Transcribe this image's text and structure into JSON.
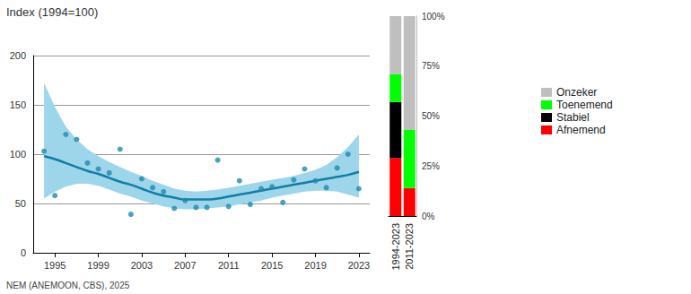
{
  "chart_data": [
    {
      "type": "line",
      "title": "Index (1994=100)",
      "source": "NEM (ANEMOON, CBS), 2025",
      "x": [
        1994,
        1995,
        1996,
        1997,
        1998,
        1999,
        2000,
        2001,
        2002,
        2003,
        2004,
        2005,
        2006,
        2007,
        2008,
        2009,
        2010,
        2011,
        2012,
        2013,
        2014,
        2015,
        2016,
        2017,
        2018,
        2019,
        2020,
        2021,
        2022,
        2023
      ],
      "series": [
        {
          "type": "scatter",
          "marker": "circle",
          "color": "#1f8aac",
          "values": [
            103,
            58,
            120,
            115,
            91,
            85,
            81,
            105,
            39,
            75,
            66,
            62,
            45,
            53,
            46,
            46,
            94,
            47,
            73,
            49,
            65,
            67,
            51,
            74,
            85,
            73,
            66,
            86,
            100,
            65
          ]
        },
        {
          "type": "line",
          "color": "#127ea3",
          "values": [
            98,
            95,
            91,
            87,
            83,
            80,
            76,
            72,
            69,
            65,
            61,
            58,
            56,
            54,
            54,
            54,
            55,
            57,
            59,
            61,
            63,
            65,
            67,
            69,
            71,
            73,
            75,
            77,
            79,
            82
          ]
        }
      ],
      "band": {
        "color": "#9dd5eb",
        "lower": [
          55,
          62,
          67,
          70,
          70,
          68,
          64,
          60,
          57,
          53,
          50,
          47,
          45,
          44,
          44,
          45,
          46,
          47,
          49,
          51,
          53,
          56,
          58,
          60,
          62,
          63,
          63,
          62,
          59,
          56
        ],
        "upper": [
          172,
          148,
          128,
          115,
          105,
          98,
          92,
          87,
          82,
          78,
          73,
          69,
          65,
          63,
          62,
          63,
          64,
          66,
          68,
          70,
          72,
          74,
          76,
          78,
          81,
          84,
          89,
          97,
          107,
          120
        ]
      },
      "xlim": [
        1993,
        2024
      ],
      "xticks": [
        1995,
        1999,
        2003,
        2007,
        2011,
        2015,
        2019,
        2023
      ],
      "ylim": [
        0,
        200
      ],
      "yticks": [
        0,
        50,
        100,
        150,
        200
      ],
      "grid": true
    },
    {
      "type": "bar",
      "stacked": true,
      "categories": [
        "1994-2023",
        "2011-2023"
      ],
      "series": [
        {
          "name": "Afnemend",
          "color": "#ff0000",
          "values": [
            29,
            14
          ]
        },
        {
          "name": "Stabiel",
          "color": "#000000",
          "values": [
            28,
            0
          ]
        },
        {
          "name": "Toenemend",
          "color": "#00ff00",
          "values": [
            14,
            29
          ]
        },
        {
          "name": "Onzeker",
          "color": "#bfbfbf",
          "values": [
            29,
            57
          ]
        }
      ],
      "ylim": [
        0,
        100
      ],
      "yticks": [
        {
          "value": 0,
          "label": "0%"
        },
        {
          "value": 25,
          "label": "25%"
        },
        {
          "value": 50,
          "label": "50%"
        },
        {
          "value": 75,
          "label": "75%"
        },
        {
          "value": 100,
          "label": "100%"
        }
      ],
      "legend": "right",
      "grid": false
    }
  ]
}
